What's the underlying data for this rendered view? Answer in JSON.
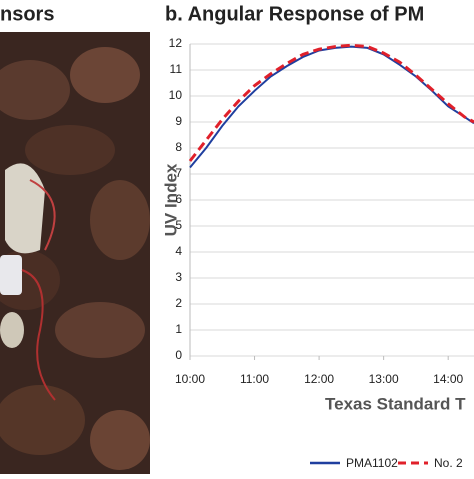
{
  "left_panel": {
    "title": "nsors"
  },
  "chart_data": {
    "type": "line",
    "title": "b. Angular Response of PM",
    "x_label": "Texas Standard T",
    "y_label": "UV Index",
    "x": [
      10,
      10.25,
      10.5,
      10.75,
      11,
      11.25,
      11.5,
      11.75,
      12,
      12.25,
      12.5,
      12.75,
      13,
      13.25,
      13.5,
      13.75,
      14,
      14.25,
      14.4
    ],
    "series": [
      {
        "name": "PMA1102",
        "color": "#1f3f9f",
        "dash": false,
        "values": [
          7.25,
          8.0,
          8.85,
          9.6,
          10.2,
          10.75,
          11.15,
          11.5,
          11.75,
          11.85,
          11.9,
          11.85,
          11.6,
          11.2,
          10.75,
          10.2,
          9.6,
          9.2,
          8.95
        ]
      },
      {
        "name": "No. 2",
        "color": "#e0202a",
        "dash": true,
        "values": [
          7.5,
          8.3,
          9.1,
          9.8,
          10.4,
          10.85,
          11.25,
          11.6,
          11.8,
          11.9,
          11.95,
          11.9,
          11.65,
          11.3,
          10.8,
          10.25,
          9.7,
          9.2,
          9.0
        ]
      }
    ],
    "xlim": [
      10,
      14.4
    ],
    "xticks": [
      {
        "value": 10,
        "label": "10:00"
      },
      {
        "value": 11,
        "label": "11:00"
      },
      {
        "value": 12,
        "label": "12:00"
      },
      {
        "value": 13,
        "label": "13:00"
      },
      {
        "value": 14,
        "label": "14:00"
      }
    ],
    "ylim": [
      0,
      12
    ],
    "yticks": [
      0,
      1,
      2,
      3,
      4,
      5,
      6,
      7,
      8,
      9,
      10,
      11,
      12
    ],
    "grid": true,
    "legend": "bottom"
  }
}
